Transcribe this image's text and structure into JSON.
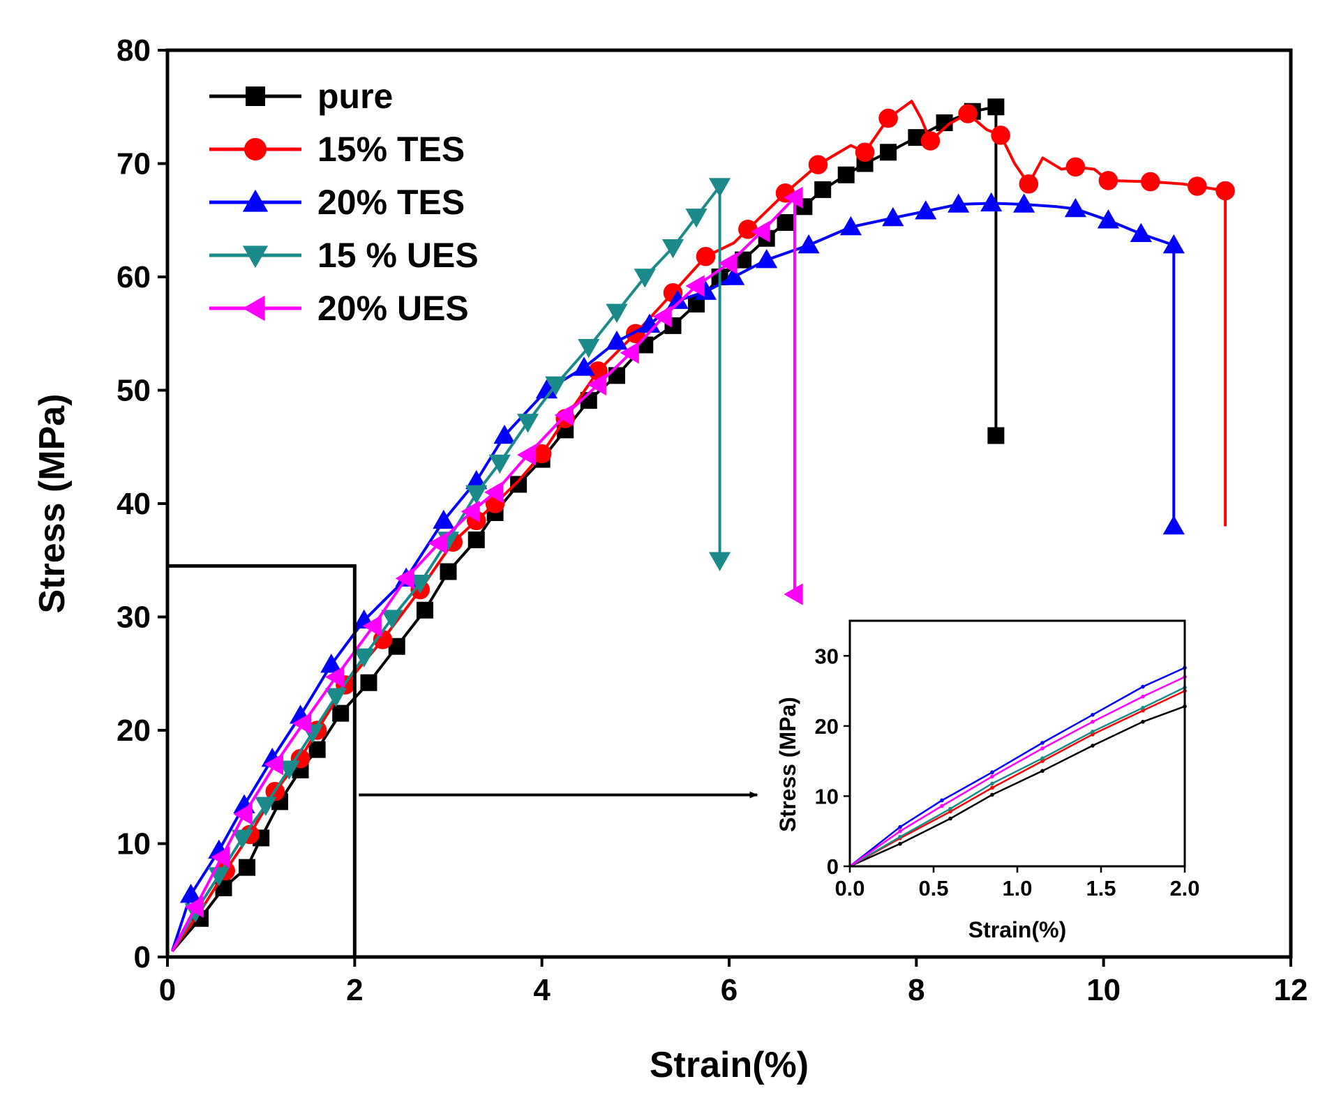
{
  "chart_data": [
    {
      "type": "line",
      "role": "main",
      "title": "",
      "xlabel": "Strain(%)",
      "ylabel": "Stress (MPa)",
      "xlim": [
        0,
        12
      ],
      "ylim": [
        0,
        80
      ],
      "xticks": [
        0,
        2,
        4,
        6,
        8,
        10,
        12
      ],
      "yticks": [
        0,
        10,
        20,
        30,
        40,
        50,
        60,
        70,
        80
      ],
      "grid": false,
      "legend_position": "top-left",
      "series": [
        {
          "name": "pure",
          "color": "#000000",
          "marker": "square",
          "points": [
            [
              0.05,
              0.5
            ],
            [
              0.35,
              3.4
            ],
            [
              0.6,
              6.1
            ],
            [
              0.85,
              7.9
            ],
            [
              1.0,
              10.5
            ],
            [
              1.2,
              13.7
            ],
            [
              1.42,
              16.5
            ],
            [
              1.6,
              18.3
            ],
            [
              1.85,
              21.5
            ],
            [
              2.15,
              24.2
            ],
            [
              2.45,
              27.4
            ],
            [
              2.75,
              30.6
            ],
            [
              3.0,
              34.0
            ],
            [
              3.3,
              36.8
            ],
            [
              3.5,
              39.2
            ],
            [
              3.75,
              41.7
            ],
            [
              4.0,
              43.9
            ],
            [
              4.25,
              46.5
            ],
            [
              4.5,
              49.1
            ],
            [
              4.8,
              51.3
            ],
            [
              5.1,
              54.0
            ],
            [
              5.4,
              55.7
            ],
            [
              5.65,
              57.6
            ],
            [
              5.9,
              60.0
            ],
            [
              6.15,
              61.5
            ],
            [
              6.4,
              63.4
            ],
            [
              6.6,
              64.8
            ],
            [
              6.8,
              66.2
            ],
            [
              7.0,
              67.7
            ],
            [
              7.25,
              69.0
            ],
            [
              7.45,
              70.0
            ],
            [
              7.7,
              71.0
            ],
            [
              8.0,
              72.3
            ],
            [
              8.3,
              73.6
            ],
            [
              8.6,
              74.6
            ],
            [
              8.85,
              75.0
            ],
            [
              8.85,
              46.0
            ]
          ],
          "marker_indices": [
            1,
            2,
            3,
            4,
            5,
            6,
            7,
            8,
            9,
            10,
            11,
            12,
            13,
            14,
            15,
            16,
            17,
            18,
            19,
            20,
            21,
            22,
            23,
            24,
            25,
            26,
            27,
            28,
            29,
            30,
            31,
            32,
            33,
            34,
            35,
            36
          ]
        },
        {
          "name": "15% TES",
          "color": "#ff0000",
          "marker": "circle",
          "points": [
            [
              0.05,
              0.5
            ],
            [
              0.35,
              4.0
            ],
            [
              0.62,
              7.6
            ],
            [
              0.88,
              10.8
            ],
            [
              1.15,
              14.6
            ],
            [
              1.42,
              17.5
            ],
            [
              1.6,
              20.0
            ],
            [
              1.9,
              24.0
            ],
            [
              2.3,
              28.0
            ],
            [
              2.7,
              32.4
            ],
            [
              3.05,
              36.6
            ],
            [
              3.3,
              38.5
            ],
            [
              3.5,
              40.0
            ],
            [
              3.75,
              42.0
            ],
            [
              4.0,
              44.4
            ],
            [
              4.25,
              47.5
            ],
            [
              4.6,
              51.7
            ],
            [
              5.0,
              55.0
            ],
            [
              5.4,
              58.6
            ],
            [
              5.75,
              61.8
            ],
            [
              6.05,
              63.0
            ],
            [
              6.2,
              64.2
            ],
            [
              6.6,
              67.4
            ],
            [
              6.95,
              69.9
            ],
            [
              7.3,
              71.6
            ],
            [
              7.45,
              71.0
            ],
            [
              7.7,
              74.0
            ],
            [
              7.95,
              75.5
            ],
            [
              8.05,
              74.0
            ],
            [
              8.15,
              72.0
            ],
            [
              8.35,
              73.5
            ],
            [
              8.55,
              74.4
            ],
            [
              8.75,
              73.0
            ],
            [
              8.9,
              72.5
            ],
            [
              9.05,
              70.0
            ],
            [
              9.2,
              68.2
            ],
            [
              9.35,
              70.5
            ],
            [
              9.55,
              69.5
            ],
            [
              9.7,
              69.7
            ],
            [
              9.9,
              69.5
            ],
            [
              10.05,
              68.5
            ],
            [
              10.5,
              68.4
            ],
            [
              10.85,
              68.2
            ],
            [
              11.0,
              68.0
            ],
            [
              11.3,
              67.6
            ],
            [
              11.3,
              38.0
            ]
          ],
          "marker_indices": [
            2,
            3,
            4,
            5,
            6,
            7,
            8,
            9,
            10,
            11,
            12,
            14,
            15,
            16,
            17,
            18,
            19,
            21,
            22,
            23,
            25,
            26,
            29,
            31,
            33,
            35,
            38,
            40,
            41,
            43,
            44
          ]
        },
        {
          "name": "20% TES",
          "color": "#0000ff",
          "marker": "triangle-up",
          "points": [
            [
              0.05,
              0.5
            ],
            [
              0.25,
              5.5
            ],
            [
              0.55,
              9.4
            ],
            [
              0.82,
              13.4
            ],
            [
              1.12,
              17.5
            ],
            [
              1.42,
              21.3
            ],
            [
              1.75,
              25.8
            ],
            [
              2.1,
              29.7
            ],
            [
              2.55,
              33.4
            ],
            [
              2.95,
              38.5
            ],
            [
              3.3,
              42.0
            ],
            [
              3.6,
              46.0
            ],
            [
              4.05,
              50.0
            ],
            [
              4.45,
              52.0
            ],
            [
              4.8,
              54.3
            ],
            [
              5.15,
              55.8
            ],
            [
              5.45,
              57.9
            ],
            [
              5.75,
              58.7
            ],
            [
              6.05,
              60.0
            ],
            [
              6.4,
              61.5
            ],
            [
              6.85,
              62.8
            ],
            [
              7.3,
              64.4
            ],
            [
              7.75,
              65.2
            ],
            [
              8.1,
              65.8
            ],
            [
              8.45,
              66.4
            ],
            [
              8.8,
              66.5
            ],
            [
              9.15,
              66.4
            ],
            [
              9.5,
              66.2
            ],
            [
              9.7,
              66.0
            ],
            [
              10.05,
              65.0
            ],
            [
              10.4,
              63.8
            ],
            [
              10.75,
              62.8
            ],
            [
              10.75,
              38.0
            ]
          ],
          "marker_indices": [
            1,
            2,
            3,
            4,
            5,
            6,
            7,
            8,
            9,
            10,
            11,
            12,
            13,
            14,
            15,
            16,
            17,
            18,
            19,
            20,
            21,
            22,
            23,
            24,
            25,
            26,
            28,
            29,
            30,
            31,
            32
          ]
        },
        {
          "name": "15 % UES",
          "color": "#1a8a8a",
          "marker": "triangle-down",
          "points": [
            [
              0.05,
              0.5
            ],
            [
              0.3,
              4.0
            ],
            [
              0.55,
              7.2
            ],
            [
              0.8,
              10.5
            ],
            [
              1.05,
              13.4
            ],
            [
              1.3,
              16.6
            ],
            [
              1.55,
              19.8
            ],
            [
              1.8,
              23.0
            ],
            [
              2.1,
              26.5
            ],
            [
              2.4,
              29.9
            ],
            [
              2.7,
              33.0
            ],
            [
              3.0,
              36.8
            ],
            [
              3.3,
              40.9
            ],
            [
              3.55,
              43.6
            ],
            [
              3.85,
              47.2
            ],
            [
              4.15,
              50.5
            ],
            [
              4.5,
              53.8
            ],
            [
              4.8,
              56.9
            ],
            [
              5.1,
              60.0
            ],
            [
              5.4,
              62.6
            ],
            [
              5.65,
              65.3
            ],
            [
              5.9,
              68.0
            ],
            [
              5.9,
              35.0
            ]
          ],
          "marker_indices": [
            1,
            2,
            3,
            4,
            5,
            6,
            7,
            8,
            9,
            10,
            11,
            12,
            13,
            14,
            15,
            16,
            17,
            18,
            19,
            20,
            21,
            22
          ]
        },
        {
          "name": "20% UES",
          "color": "#ff00ff",
          "marker": "triangle-left",
          "points": [
            [
              0.05,
              0.5
            ],
            [
              0.3,
              4.4
            ],
            [
              0.58,
              8.8
            ],
            [
              0.82,
              12.6
            ],
            [
              1.15,
              17.0
            ],
            [
              1.45,
              20.6
            ],
            [
              1.8,
              24.7
            ],
            [
              2.2,
              29.2
            ],
            [
              2.55,
              33.4
            ],
            [
              2.9,
              36.5
            ],
            [
              3.25,
              39.3
            ],
            [
              3.5,
              41.0
            ],
            [
              3.85,
              44.3
            ],
            [
              4.25,
              47.8
            ],
            [
              4.6,
              50.5
            ],
            [
              4.95,
              53.3
            ],
            [
              5.3,
              56.5
            ],
            [
              5.65,
              59.2
            ],
            [
              6.0,
              61.2
            ],
            [
              6.35,
              64.0
            ],
            [
              6.7,
              67.0
            ],
            [
              6.7,
              32.0
            ]
          ],
          "marker_indices": [
            1,
            2,
            3,
            4,
            5,
            6,
            7,
            8,
            9,
            10,
            11,
            12,
            13,
            14,
            15,
            16,
            17,
            18,
            19,
            20,
            21
          ]
        }
      ],
      "annotations": [
        {
          "type": "rectangle",
          "x_range": [
            0,
            2
          ],
          "y_range": [
            0,
            34.5
          ],
          "description": "zoom region"
        },
        {
          "type": "arrow",
          "from": [
            2.0,
            14.3
          ],
          "to": [
            6.3,
            14.3
          ]
        }
      ]
    },
    {
      "type": "line",
      "role": "inset",
      "title": "",
      "xlabel": "Strain(%)",
      "ylabel": "Stress (MPa)",
      "xlim": [
        0,
        2
      ],
      "ylim": [
        0,
        35
      ],
      "xticks": [
        0.0,
        0.5,
        1.0,
        1.5,
        2.0
      ],
      "yticks": [
        0,
        10,
        20,
        30
      ],
      "xtick_labels": [
        "0.0",
        "0.5",
        "1.0",
        "1.5",
        "2.0"
      ],
      "ytick_labels": [
        "0",
        "10",
        "20",
        "30"
      ],
      "grid": false,
      "series": [
        {
          "name": "pure",
          "color": "#000000",
          "points": [
            [
              0,
              0
            ],
            [
              0.3,
              3.2
            ],
            [
              0.6,
              6.8
            ],
            [
              0.85,
              10.2
            ],
            [
              1.15,
              13.6
            ],
            [
              1.45,
              17.2
            ],
            [
              1.75,
              20.6
            ],
            [
              2.0,
              22.8
            ]
          ]
        },
        {
          "name": "15% TES",
          "color": "#ff0000",
          "points": [
            [
              0,
              0
            ],
            [
              0.3,
              4.0
            ],
            [
              0.6,
              7.8
            ],
            [
              0.85,
              11.2
            ],
            [
              1.15,
              15.0
            ],
            [
              1.45,
              18.8
            ],
            [
              1.75,
              22.2
            ],
            [
              2.0,
              25.0
            ]
          ]
        },
        {
          "name": "20% TES",
          "color": "#0000ff",
          "points": [
            [
              0,
              0
            ],
            [
              0.3,
              5.6
            ],
            [
              0.55,
              9.4
            ],
            [
              0.85,
              13.4
            ],
            [
              1.15,
              17.6
            ],
            [
              1.45,
              21.6
            ],
            [
              1.75,
              25.6
            ],
            [
              2.0,
              28.3
            ]
          ]
        },
        {
          "name": "15 % UES",
          "color": "#1a8a8a",
          "points": [
            [
              0,
              0
            ],
            [
              0.3,
              4.2
            ],
            [
              0.6,
              8.2
            ],
            [
              0.85,
              11.8
            ],
            [
              1.15,
              15.4
            ],
            [
              1.45,
              19.2
            ],
            [
              1.75,
              22.6
            ],
            [
              2.0,
              25.5
            ]
          ]
        },
        {
          "name": "20% UES",
          "color": "#ff00ff",
          "points": [
            [
              0,
              0
            ],
            [
              0.3,
              5.0
            ],
            [
              0.55,
              8.6
            ],
            [
              0.85,
              12.8
            ],
            [
              1.15,
              16.8
            ],
            [
              1.45,
              20.6
            ],
            [
              1.75,
              24.2
            ],
            [
              2.0,
              27.0
            ]
          ]
        }
      ]
    }
  ]
}
